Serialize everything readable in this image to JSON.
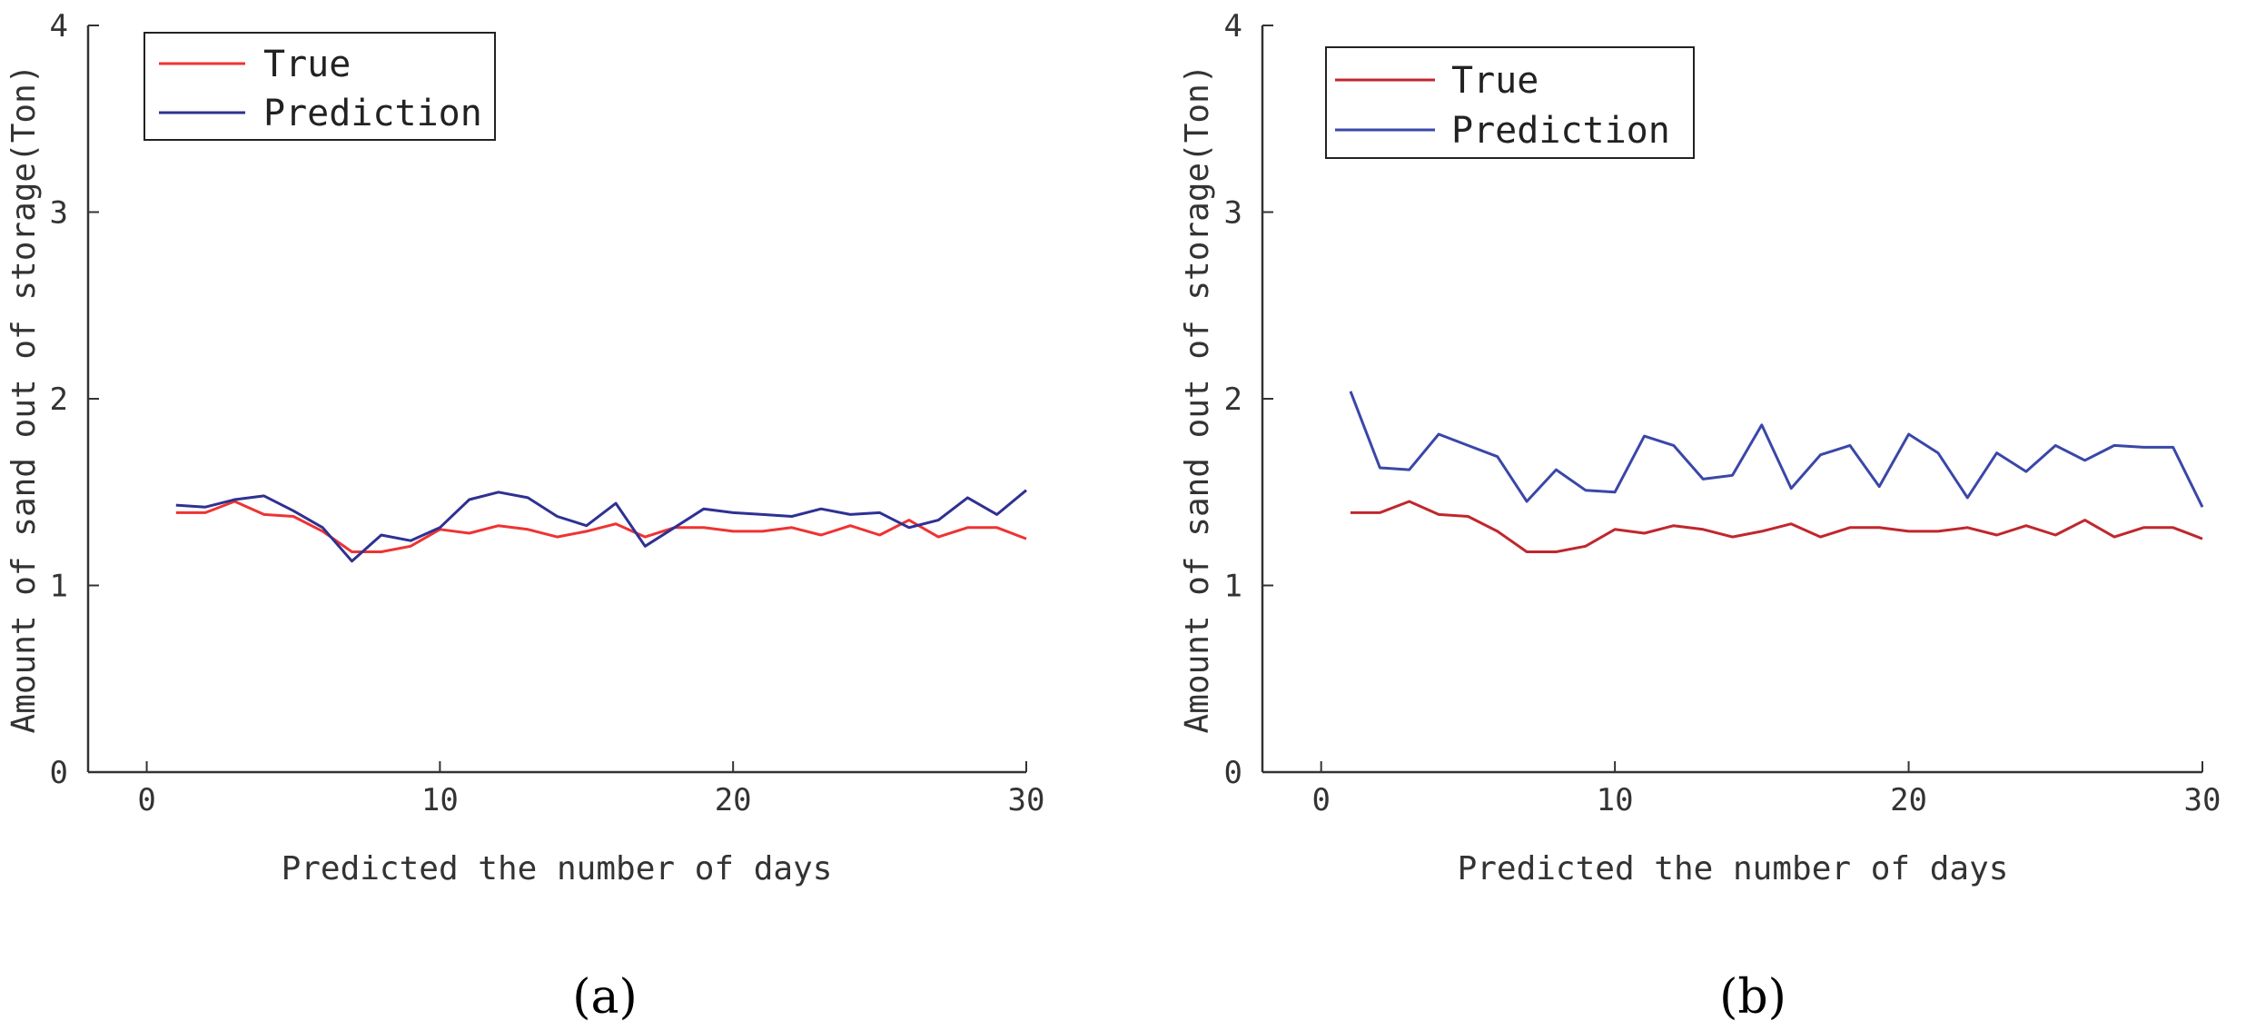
{
  "chart_data": [
    {
      "type": "line",
      "caption": "(a)",
      "title": "",
      "xlabel": "Predicted the number of days",
      "ylabel": "Amount of sand out of storage(Ton)",
      "xlim": [
        -2,
        30
      ],
      "ylim": [
        0,
        4
      ],
      "xticks": [
        0,
        10,
        20,
        30
      ],
      "yticks": [
        0,
        1,
        2,
        3,
        4
      ],
      "grid": false,
      "legend": "top-left",
      "x": [
        1,
        2,
        3,
        4,
        5,
        6,
        7,
        8,
        9,
        10,
        11,
        12,
        13,
        14,
        15,
        16,
        17,
        18,
        19,
        20,
        21,
        22,
        23,
        24,
        25,
        26,
        27,
        28,
        29,
        30
      ],
      "series": [
        {
          "name": "True",
          "color": "#ee3333",
          "values": [
            1.39,
            1.39,
            1.45,
            1.38,
            1.37,
            1.29,
            1.18,
            1.18,
            1.21,
            1.3,
            1.28,
            1.32,
            1.3,
            1.26,
            1.29,
            1.33,
            1.26,
            1.31,
            1.31,
            1.29,
            1.29,
            1.31,
            1.27,
            1.32,
            1.27,
            1.35,
            1.26,
            1.31,
            1.31,
            1.25
          ]
        },
        {
          "name": "Prediction",
          "color": "#2e3192",
          "values": [
            1.43,
            1.42,
            1.46,
            1.48,
            1.4,
            1.31,
            1.13,
            1.27,
            1.24,
            1.31,
            1.46,
            1.5,
            1.47,
            1.37,
            1.32,
            1.44,
            1.21,
            1.31,
            1.41,
            1.39,
            1.38,
            1.37,
            1.41,
            1.38,
            1.39,
            1.31,
            1.35,
            1.47,
            1.38,
            1.51
          ]
        }
      ]
    },
    {
      "type": "line",
      "caption": "(b)",
      "title": "",
      "xlabel": "Predicted the number of days",
      "ylabel": "Amount of sand out of storage(Ton)",
      "xlim": [
        -2,
        30
      ],
      "ylim": [
        0,
        4
      ],
      "xticks": [
        0,
        10,
        20,
        30
      ],
      "yticks": [
        0,
        1,
        2,
        3,
        4
      ],
      "grid": false,
      "legend": "top-left",
      "x": [
        1,
        2,
        3,
        4,
        5,
        6,
        7,
        8,
        9,
        10,
        11,
        12,
        13,
        14,
        15,
        16,
        17,
        18,
        19,
        20,
        21,
        22,
        23,
        24,
        25,
        26,
        27,
        28,
        29,
        30
      ],
      "series": [
        {
          "name": "True",
          "color": "#c0272d",
          "values": [
            1.39,
            1.39,
            1.45,
            1.38,
            1.37,
            1.29,
            1.18,
            1.18,
            1.21,
            1.3,
            1.28,
            1.32,
            1.3,
            1.26,
            1.29,
            1.33,
            1.26,
            1.31,
            1.31,
            1.29,
            1.29,
            1.31,
            1.27,
            1.32,
            1.27,
            1.35,
            1.26,
            1.31,
            1.31,
            1.25
          ]
        },
        {
          "name": "Prediction",
          "color": "#3a47a8",
          "values": [
            2.04,
            1.63,
            1.62,
            1.81,
            1.75,
            1.69,
            1.45,
            1.62,
            1.51,
            1.5,
            1.8,
            1.75,
            1.57,
            1.59,
            1.86,
            1.52,
            1.7,
            1.75,
            1.53,
            1.81,
            1.71,
            1.47,
            1.71,
            1.61,
            1.75,
            1.67,
            1.75,
            1.74,
            1.74,
            1.42
          ]
        }
      ]
    }
  ]
}
